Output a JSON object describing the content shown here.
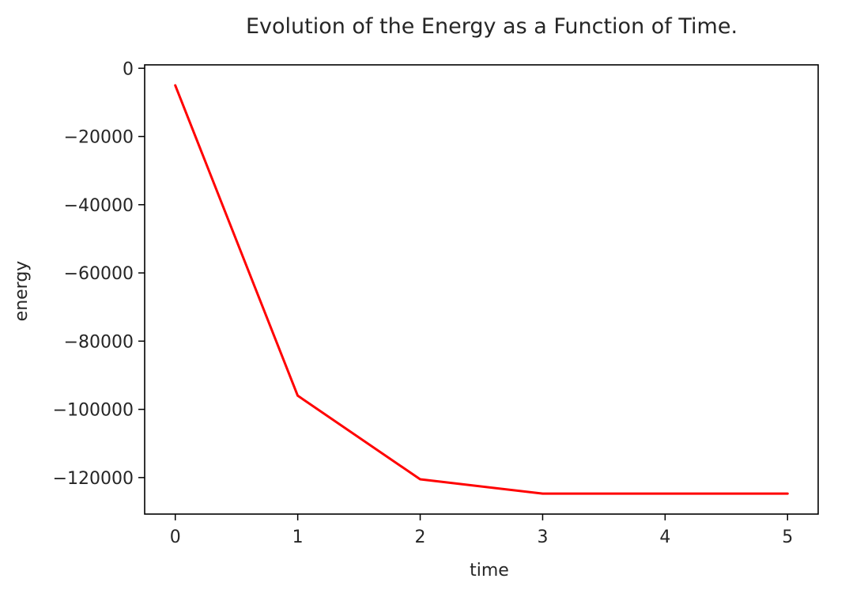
{
  "chart_data": {
    "type": "line",
    "title": "Evolution of the Energy as a Function of Time.",
    "xlabel": "time",
    "ylabel": "energy",
    "x": [
      0,
      1,
      2,
      3,
      4,
      5
    ],
    "series": [
      {
        "values": [
          -5000,
          -96000,
          -120500,
          -124700,
          -124700,
          -124700
        ],
        "color": "#ff0000"
      }
    ],
    "xlim": [
      -0.25,
      5.25
    ],
    "ylim": [
      -130700,
      1000
    ],
    "xticks": [
      0,
      1,
      2,
      3,
      4,
      5
    ],
    "xtick_labels": [
      "0",
      "1",
      "2",
      "3",
      "4",
      "5"
    ],
    "yticks": [
      0,
      -20000,
      -40000,
      -60000,
      -80000,
      -100000,
      -120000
    ],
    "ytick_labels": [
      "0",
      "−20000",
      "−40000",
      "−60000",
      "−80000",
      "−100000",
      "−120000"
    ],
    "grid": false,
    "legend": "none"
  }
}
